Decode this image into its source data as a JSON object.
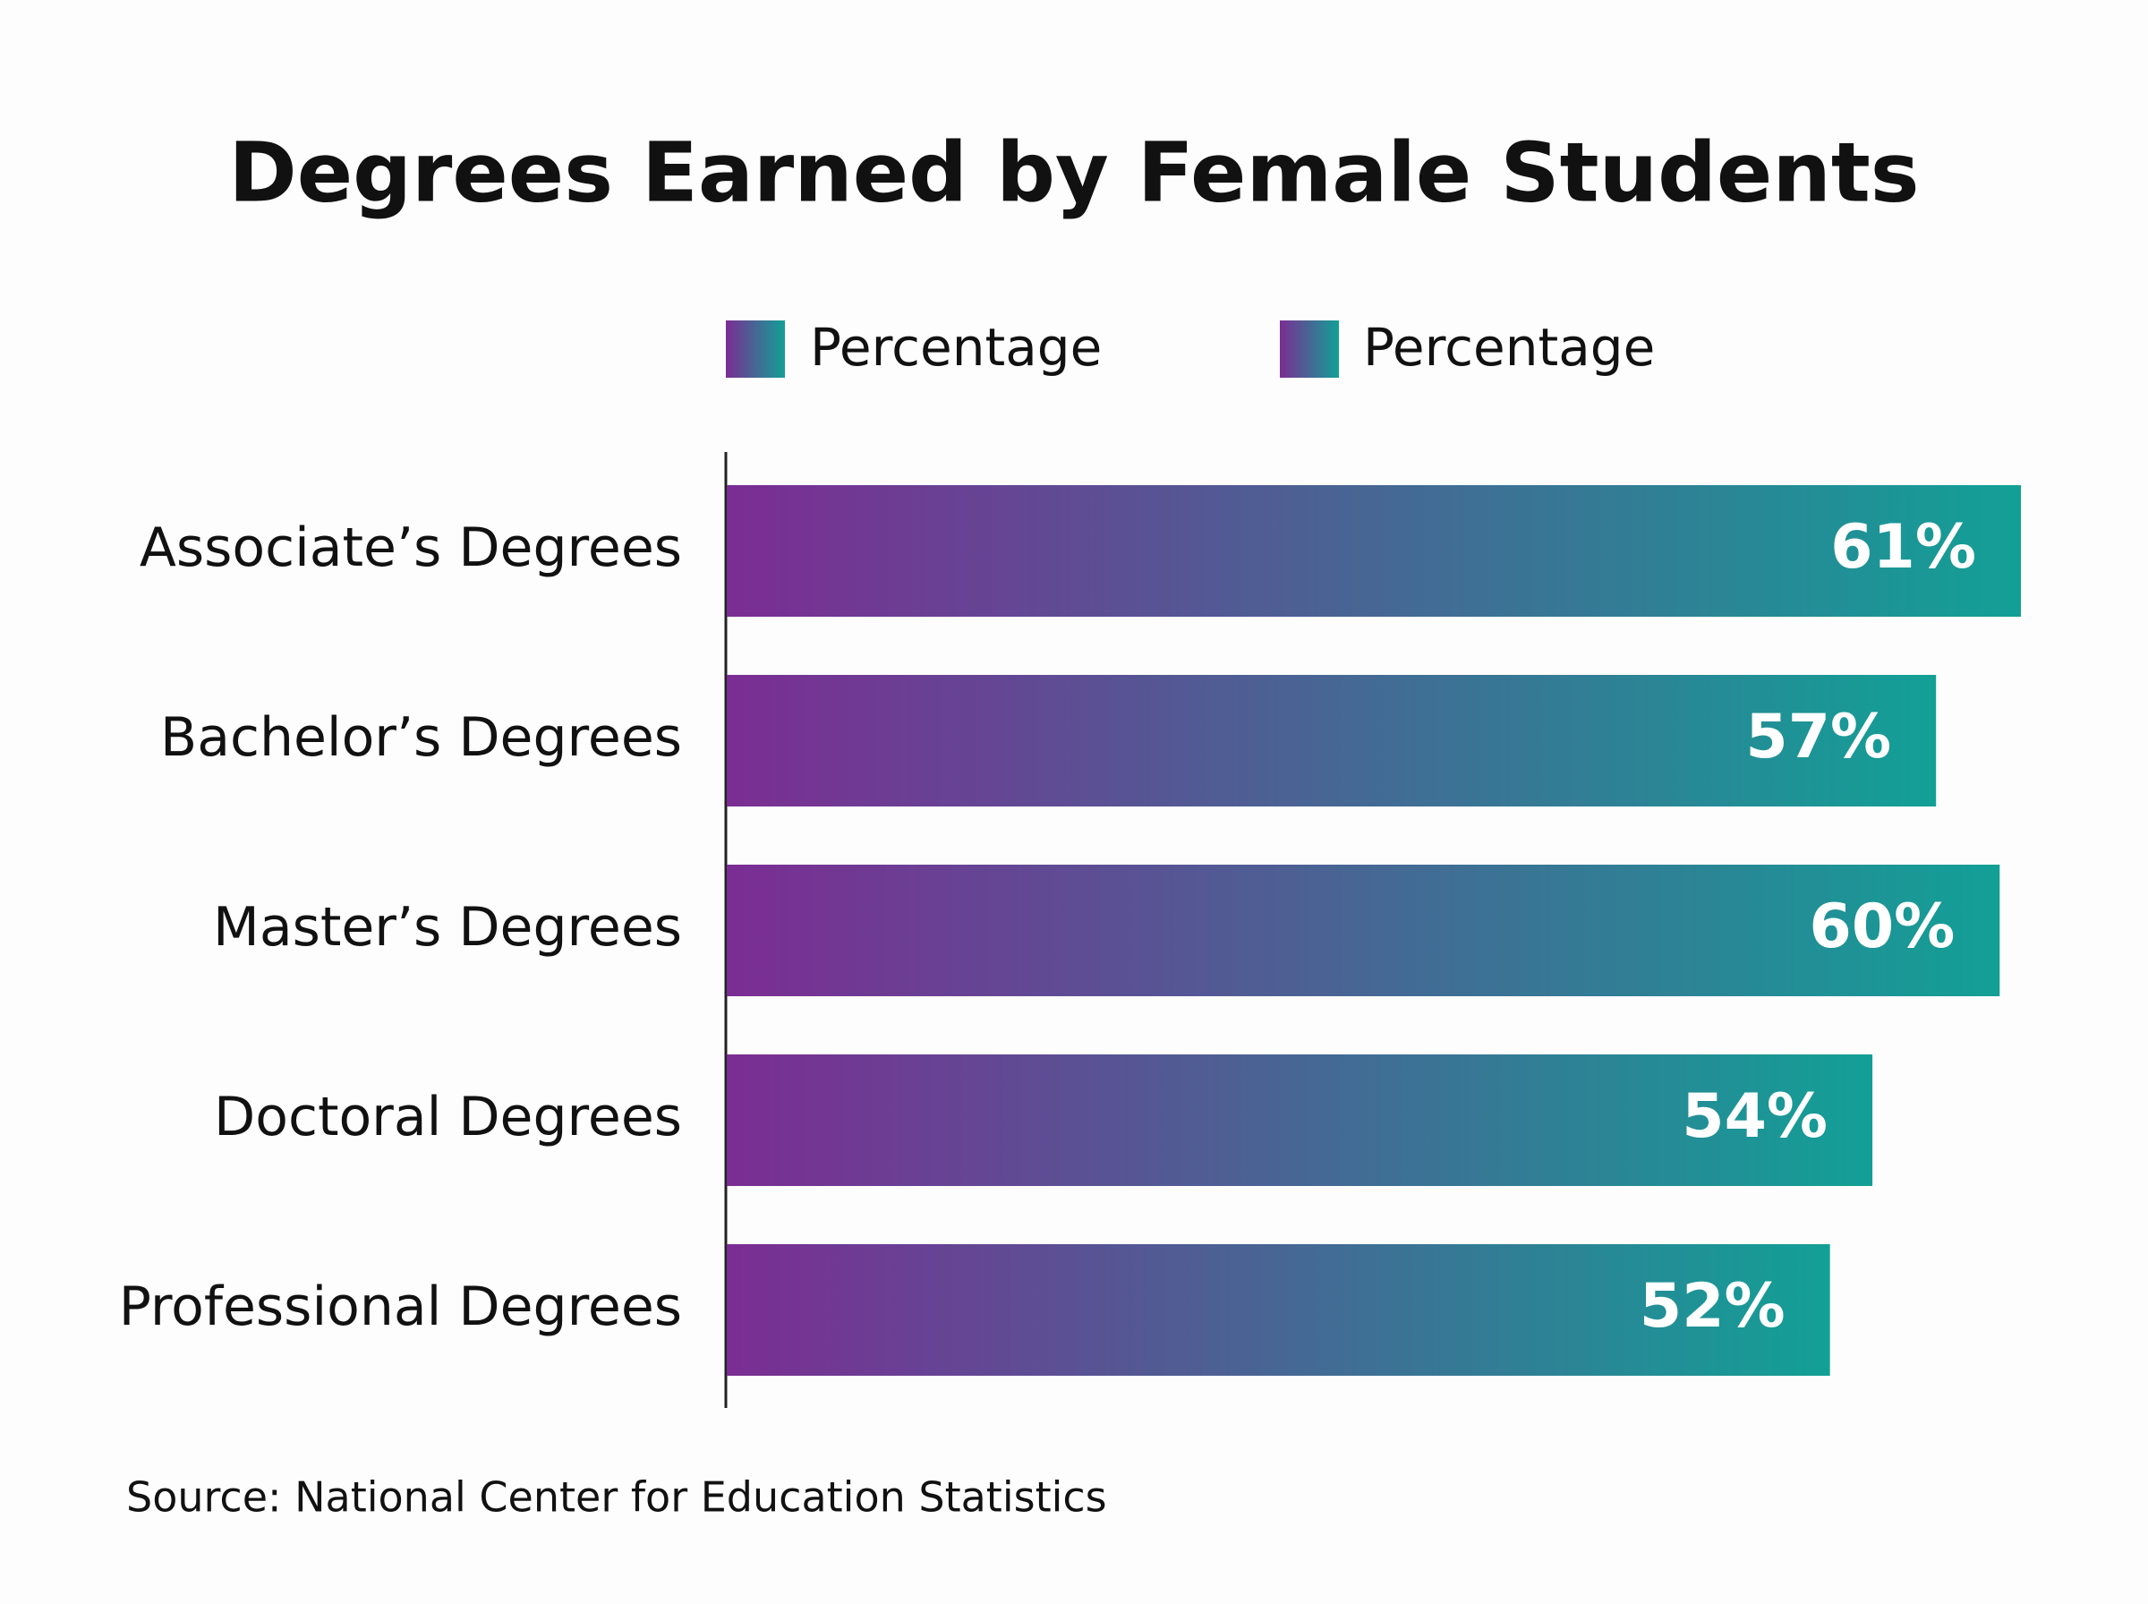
{
  "chart_data": {
    "type": "bar",
    "orientation": "horizontal",
    "title": "Degrees Earned by Female Students",
    "legend_labels": [
      "Percentage",
      "Percentage"
    ],
    "categories": [
      "Associate’s Degrees",
      "Bachelor’s Degrees",
      "Master’s Degrees",
      "Doctoral Degrees",
      "Professional Degrees"
    ],
    "values": [
      61,
      57,
      60,
      54,
      52
    ],
    "value_labels": [
      "61%",
      "57%",
      "60%",
      "54%",
      "52%"
    ],
    "colors": [
      "#7b2d93",
      "#12a096"
    ],
    "source": "Source: National Center for Education Statistics"
  }
}
